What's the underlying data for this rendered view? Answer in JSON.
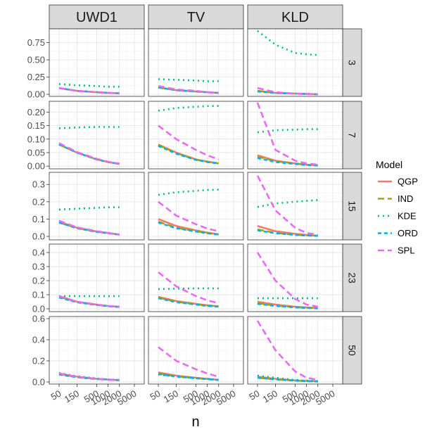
{
  "chart_data": {
    "type": "line",
    "facet_columns": [
      "UWD1",
      "TV",
      "KLD"
    ],
    "facet_rows": [
      "3",
      "7",
      "15",
      "23",
      "50"
    ],
    "x": [
      50,
      150,
      500,
      1000,
      2000
    ],
    "x_tick_labels": [
      "50",
      "150",
      "500",
      "1000",
      "2000",
      "5000"
    ],
    "xlabel": "n",
    "ylabel": "",
    "y_axes": [
      {
        "ylim": [
          -0.03,
          0.95
        ],
        "ticks": [
          0.0,
          0.25,
          0.5,
          0.75
        ],
        "tick_labels": [
          "0.00",
          "0.25",
          "0.50",
          "0.75"
        ]
      },
      {
        "ylim": [
          -0.01,
          0.24
        ],
        "ticks": [
          0.0,
          0.05,
          0.1,
          0.15,
          0.2
        ],
        "tick_labels": [
          "0.00",
          "0.05",
          "0.10",
          "0.15",
          "0.20"
        ]
      },
      {
        "ylim": [
          -0.02,
          0.37
        ],
        "ticks": [
          0.0,
          0.1,
          0.2,
          0.3
        ],
        "tick_labels": [
          "0.0",
          "0.1",
          "0.2",
          "0.3"
        ]
      },
      {
        "ylim": [
          -0.02,
          0.46
        ],
        "ticks": [
          0.0,
          0.1,
          0.2,
          0.3,
          0.4
        ],
        "tick_labels": [
          "0.0",
          "0.1",
          "0.2",
          "0.3",
          "0.4"
        ]
      },
      {
        "ylim": [
          -0.02,
          0.62
        ],
        "ticks": [
          0.0,
          0.2,
          0.4,
          0.6
        ],
        "tick_labels": [
          "0.0",
          "0.2",
          "0.4",
          "0.6"
        ]
      }
    ],
    "legend": {
      "title": "Model",
      "position": "right",
      "entries": [
        {
          "name": "QGP",
          "color": "#F8766D",
          "dash": "solid"
        },
        {
          "name": "IND",
          "color": "#A3A500",
          "dash": "longdash"
        },
        {
          "name": "KDE",
          "color": "#00BF7D",
          "dash": "dotted"
        },
        {
          "name": "ORD",
          "color": "#00B0F6",
          "dash": "dashed"
        },
        {
          "name": "SPL",
          "color": "#E76BF3",
          "dash": "longdash"
        }
      ]
    },
    "grid": true,
    "panels": [
      {
        "row": "3",
        "col": "UWD1",
        "series": {
          "QGP": [
            0.09,
            0.05,
            0.03,
            0.02,
            0.015
          ],
          "IND": [
            0.09,
            0.05,
            0.03,
            0.02,
            0.015
          ],
          "KDE": [
            0.15,
            0.13,
            0.12,
            0.11,
            0.11
          ],
          "ORD": [
            0.09,
            0.05,
            0.03,
            0.02,
            0.015
          ],
          "SPL": [
            0.09,
            0.05,
            0.03,
            0.02,
            0.015
          ]
        }
      },
      {
        "row": "3",
        "col": "TV",
        "series": {
          "QGP": [
            0.1,
            0.06,
            0.04,
            0.03,
            0.02
          ],
          "IND": [
            0.1,
            0.06,
            0.04,
            0.03,
            0.02
          ],
          "KDE": [
            0.22,
            0.21,
            0.2,
            0.19,
            0.19
          ],
          "ORD": [
            0.1,
            0.06,
            0.04,
            0.03,
            0.02
          ],
          "SPL": [
            0.12,
            0.07,
            0.05,
            0.03,
            0.02
          ]
        }
      },
      {
        "row": "3",
        "col": "KLD",
        "series": {
          "QGP": [
            0.05,
            0.02,
            0.01,
            0.005,
            0.0
          ],
          "IND": [
            0.05,
            0.02,
            0.01,
            0.005,
            0.0
          ],
          "KDE": [
            0.92,
            0.72,
            0.6,
            0.58,
            0.57
          ],
          "ORD": [
            0.04,
            0.02,
            0.01,
            0.005,
            0.0
          ],
          "SPL": [
            0.09,
            0.03,
            0.01,
            0.005,
            0.0
          ]
        }
      },
      {
        "row": "7",
        "col": "UWD1",
        "series": {
          "QGP": [
            0.08,
            0.05,
            0.025,
            0.015,
            0.008
          ],
          "IND": [
            0.08,
            0.05,
            0.025,
            0.015,
            0.008
          ],
          "KDE": [
            0.14,
            0.143,
            0.145,
            0.145,
            0.145
          ],
          "ORD": [
            0.08,
            0.05,
            0.025,
            0.015,
            0.008
          ],
          "SPL": [
            0.085,
            0.052,
            0.027,
            0.016,
            0.009
          ]
        }
      },
      {
        "row": "7",
        "col": "TV",
        "series": {
          "QGP": [
            0.08,
            0.05,
            0.025,
            0.017,
            0.01
          ],
          "IND": [
            0.078,
            0.048,
            0.024,
            0.016,
            0.01
          ],
          "KDE": [
            0.205,
            0.215,
            0.22,
            0.222,
            0.223
          ],
          "ORD": [
            0.075,
            0.046,
            0.023,
            0.015,
            0.01
          ],
          "SPL": [
            0.15,
            0.1,
            0.06,
            0.04,
            0.025
          ]
        }
      },
      {
        "row": "7",
        "col": "KLD",
        "series": {
          "QGP": [
            0.04,
            0.02,
            0.01,
            0.005,
            0.003
          ],
          "IND": [
            0.035,
            0.018,
            0.009,
            0.005,
            0.003
          ],
          "KDE": [
            0.125,
            0.133,
            0.135,
            0.137,
            0.137
          ],
          "ORD": [
            0.03,
            0.015,
            0.008,
            0.004,
            0.002
          ],
          "SPL": [
            0.235,
            0.06,
            0.02,
            0.01,
            0.005
          ]
        }
      },
      {
        "row": "15",
        "col": "UWD1",
        "series": {
          "QGP": [
            0.085,
            0.05,
            0.028,
            0.02,
            0.01
          ],
          "IND": [
            0.08,
            0.048,
            0.027,
            0.019,
            0.01
          ],
          "KDE": [
            0.155,
            0.16,
            0.165,
            0.168,
            0.168
          ],
          "ORD": [
            0.08,
            0.047,
            0.026,
            0.018,
            0.01
          ],
          "SPL": [
            0.09,
            0.052,
            0.03,
            0.02,
            0.011
          ]
        }
      },
      {
        "row": "15",
        "col": "TV",
        "series": {
          "QGP": [
            0.1,
            0.06,
            0.035,
            0.022,
            0.012
          ],
          "IND": [
            0.085,
            0.05,
            0.03,
            0.02,
            0.011
          ],
          "KDE": [
            0.24,
            0.255,
            0.263,
            0.268,
            0.27
          ],
          "ORD": [
            0.08,
            0.047,
            0.028,
            0.018,
            0.01
          ],
          "SPL": [
            0.2,
            0.12,
            0.07,
            0.045,
            0.03
          ]
        }
      },
      {
        "row": "15",
        "col": "KLD",
        "series": {
          "QGP": [
            0.06,
            0.03,
            0.015,
            0.008,
            0.004
          ],
          "IND": [
            0.04,
            0.02,
            0.01,
            0.006,
            0.003
          ],
          "KDE": [
            0.17,
            0.19,
            0.2,
            0.205,
            0.21
          ],
          "ORD": [
            0.035,
            0.018,
            0.009,
            0.005,
            0.003
          ],
          "SPL": [
            0.35,
            0.15,
            0.05,
            0.02,
            0.01
          ]
        }
      },
      {
        "row": "23",
        "col": "UWD1",
        "series": {
          "QGP": [
            0.09,
            0.05,
            0.03,
            0.02,
            0.015
          ],
          "IND": [
            0.085,
            0.048,
            0.028,
            0.019,
            0.014
          ],
          "KDE": [
            0.09,
            0.09,
            0.09,
            0.09,
            0.09
          ],
          "ORD": [
            0.08,
            0.046,
            0.027,
            0.018,
            0.013
          ],
          "SPL": [
            0.09,
            0.05,
            0.03,
            0.02,
            0.015
          ]
        }
      },
      {
        "row": "23",
        "col": "TV",
        "series": {
          "QGP": [
            0.085,
            0.055,
            0.035,
            0.025,
            0.018
          ],
          "IND": [
            0.08,
            0.05,
            0.032,
            0.023,
            0.016
          ],
          "KDE": [
            0.14,
            0.143,
            0.145,
            0.145,
            0.145
          ],
          "ORD": [
            0.075,
            0.047,
            0.03,
            0.02,
            0.015
          ],
          "SPL": [
            0.26,
            0.16,
            0.09,
            0.06,
            0.04
          ]
        }
      },
      {
        "row": "23",
        "col": "KLD",
        "series": {
          "QGP": [
            0.05,
            0.03,
            0.015,
            0.01,
            0.005
          ],
          "IND": [
            0.04,
            0.022,
            0.012,
            0.008,
            0.004
          ],
          "KDE": [
            0.075,
            0.075,
            0.075,
            0.075,
            0.075
          ],
          "ORD": [
            0.035,
            0.02,
            0.01,
            0.006,
            0.003
          ],
          "SPL": [
            0.4,
            0.2,
            0.07,
            0.03,
            0.015
          ]
        }
      },
      {
        "row": "50",
        "col": "UWD1",
        "series": {
          "QGP": [
            0.08,
            0.05,
            0.03,
            0.022,
            0.018
          ],
          "IND": [
            0.075,
            0.047,
            0.028,
            0.02,
            0.016
          ],
          "KDE": [
            0.085,
            0.055,
            0.033,
            0.024,
            0.02
          ],
          "ORD": [
            0.07,
            0.045,
            0.027,
            0.025,
            0.015
          ],
          "SPL": [
            0.08,
            0.05,
            0.03,
            0.022,
            0.018
          ]
        }
      },
      {
        "row": "50",
        "col": "TV",
        "series": {
          "QGP": [
            0.09,
            0.06,
            0.04,
            0.03,
            0.02
          ],
          "IND": [
            0.08,
            0.055,
            0.035,
            0.028,
            0.02
          ],
          "KDE": [
            0.07,
            0.05,
            0.035,
            0.03,
            0.02
          ],
          "ORD": [
            0.075,
            0.052,
            0.035,
            0.027,
            0.018
          ],
          "SPL": [
            0.33,
            0.2,
            0.12,
            0.08,
            0.05
          ]
        }
      },
      {
        "row": "50",
        "col": "KLD",
        "series": {
          "QGP": [
            0.05,
            0.03,
            0.015,
            0.01,
            0.006
          ],
          "IND": [
            0.04,
            0.025,
            0.013,
            0.008,
            0.005
          ],
          "KDE": [
            0.06,
            0.04,
            0.02,
            0.012,
            0.008
          ],
          "ORD": [
            0.04,
            0.024,
            0.012,
            0.008,
            0.004
          ],
          "SPL": [
            0.58,
            0.3,
            0.1,
            0.04,
            0.02
          ]
        }
      }
    ]
  }
}
